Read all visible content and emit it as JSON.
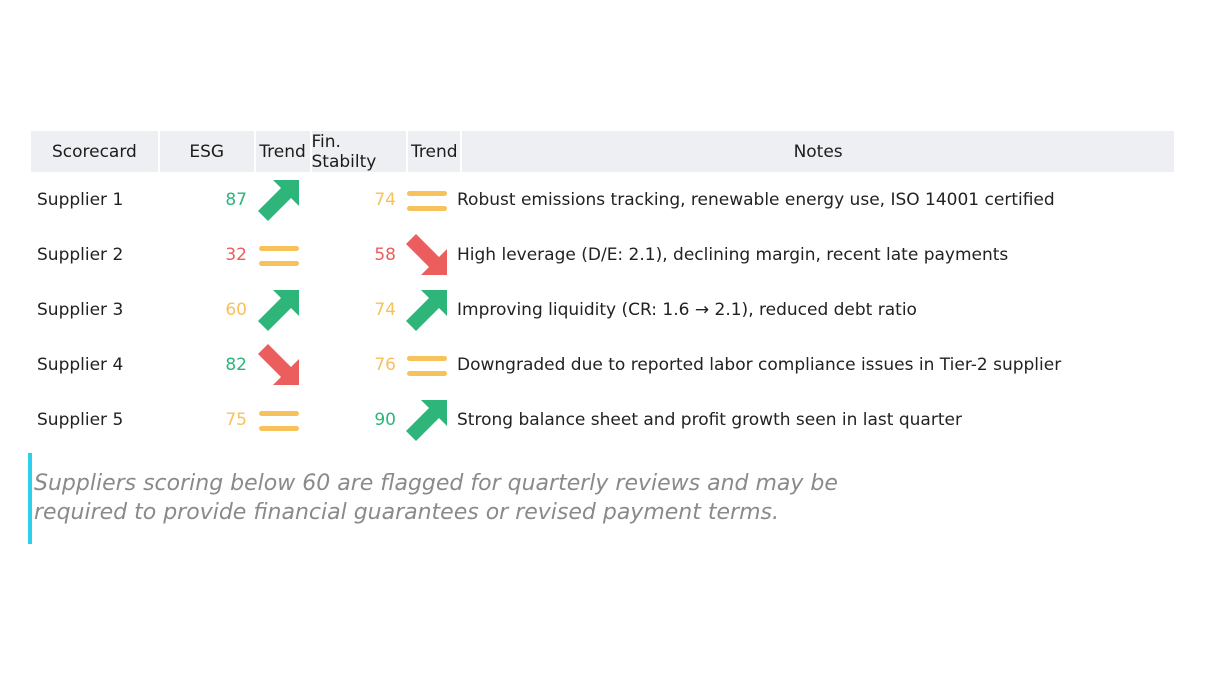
{
  "headers": [
    "Scorecard",
    "ESG",
    "Trend",
    "Fin. Stabilty",
    "Trend",
    "Notes"
  ],
  "colors": {
    "green": "#2db57a",
    "red": "#ec5d5d",
    "amber": "#f7c15c",
    "accent": "#2ad0ec",
    "header_bg": "#eeeff2"
  },
  "rows": [
    {
      "name": "Supplier 1",
      "esg": "87",
      "esg_color": "green",
      "esg_trend": "up-arrow-icon",
      "fin": "74",
      "fin_color": "amber",
      "fin_trend": "flat-equals-icon",
      "notes": "Robust emissions tracking, renewable energy use, ISO 14001 certified"
    },
    {
      "name": "Supplier 2",
      "esg": "32",
      "esg_color": "red",
      "esg_trend": "flat-equals-icon",
      "fin": "58",
      "fin_color": "red",
      "fin_trend": "down-arrow-icon",
      "notes": "High leverage (D/E: 2.1), declining margin, recent late payments"
    },
    {
      "name": "Supplier 3",
      "esg": "60",
      "esg_color": "amber",
      "esg_trend": "up-arrow-icon",
      "fin": "74",
      "fin_color": "amber",
      "fin_trend": "up-arrow-icon",
      "notes": "Improving liquidity (CR: 1.6 → 2.1), reduced debt ratio"
    },
    {
      "name": "Supplier 4",
      "esg": "82",
      "esg_color": "green",
      "esg_trend": "down-arrow-icon",
      "fin": "76",
      "fin_color": "amber",
      "fin_trend": "flat-equals-icon",
      "notes": "Downgraded due to reported labor compliance issues in Tier-2 supplier"
    },
    {
      "name": "Supplier 5",
      "esg": "75",
      "esg_color": "amber",
      "esg_trend": "flat-equals-icon",
      "fin": "90",
      "fin_color": "green",
      "fin_trend": "up-arrow-icon",
      "notes": "Strong balance sheet and profit growth seen in last quarter"
    }
  ],
  "footnote": {
    "line1": "Suppliers scoring below 60 are flagged for quarterly reviews and may be",
    "line2": "required to provide financial guarantees or revised payment terms."
  }
}
